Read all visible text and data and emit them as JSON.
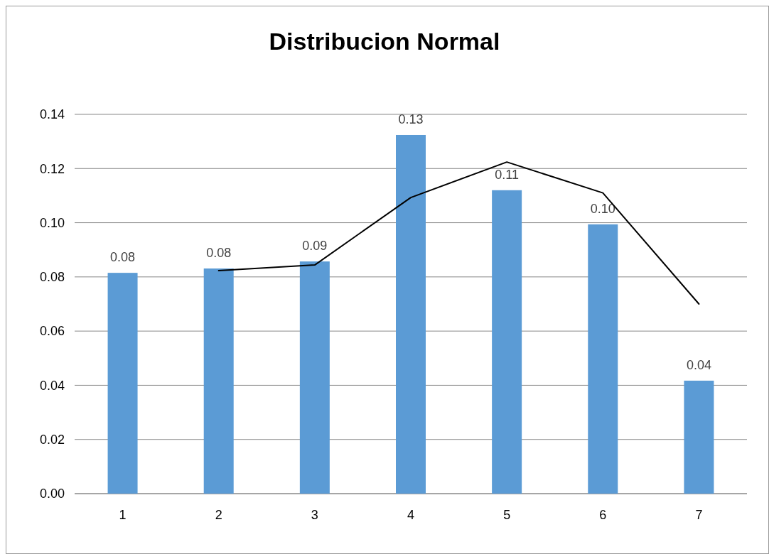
{
  "chart_data": {
    "type": "bar",
    "title": "Distribucion Normal",
    "categories": [
      "1",
      "2",
      "3",
      "4",
      "5",
      "6",
      "7"
    ],
    "series": [
      {
        "color": "#5b9bd5",
        "values": [
          0.0815,
          0.0831,
          0.0857,
          0.1324,
          0.112,
          0.0994,
          0.0417
        ],
        "value_labels": [
          "0.08",
          "0.08",
          "0.09",
          "0.13",
          "0.11",
          "0.10",
          "0.04"
        ]
      },
      {
        "type": "line",
        "color": "#000000",
        "values": [
          null,
          0.0823,
          0.0844,
          0.1093,
          0.1224,
          0.111,
          0.07
        ]
      }
    ],
    "ylim": [
      0,
      0.14
    ],
    "yticks": [
      {
        "value": 0,
        "label": "0.00"
      },
      {
        "value": 0.02,
        "label": "0.02"
      },
      {
        "value": 0.04,
        "label": "0.04"
      },
      {
        "value": 0.06,
        "label": "0.06"
      },
      {
        "value": 0.08,
        "label": "0.08"
      },
      {
        "value": 0.1,
        "label": "0.10"
      },
      {
        "value": 0.12,
        "label": "0.12"
      },
      {
        "value": 0.14,
        "label": "0.14"
      }
    ],
    "grid": "y"
  }
}
